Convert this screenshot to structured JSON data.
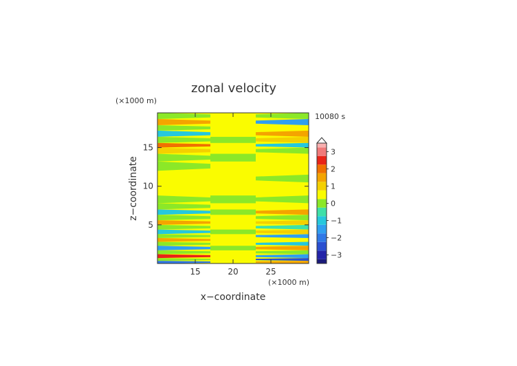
{
  "chart_data": {
    "type": "heatmap",
    "title": "zonal velocity",
    "xlabel": "x−coordinate",
    "ylabel": "z−coordinate",
    "x_unit": "(×1000 m)",
    "y_unit": "(×1000 m)",
    "time_label": "10080 s",
    "xlim": [
      10,
      30
    ],
    "ylim": [
      0,
      19.5
    ],
    "x_ticks": [
      15,
      20,
      25
    ],
    "y_ticks": [
      5,
      10,
      15
    ],
    "colorbar": {
      "ticks": [
        3,
        2,
        1,
        0,
        -1,
        -2,
        -3
      ],
      "min": -3.5,
      "max": 3.5,
      "extend": "max",
      "levels": [
        {
          "from": -3.5,
          "to": -3.25,
          "color": "#1a1a7a"
        },
        {
          "from": -3.25,
          "to": -2.75,
          "color": "#2424a8"
        },
        {
          "from": -2.75,
          "to": -2.25,
          "color": "#2a4fd0"
        },
        {
          "from": -2.25,
          "to": -1.75,
          "color": "#2f78e6"
        },
        {
          "from": -1.75,
          "to": -1.25,
          "color": "#2f9ff0"
        },
        {
          "from": -1.25,
          "to": -0.75,
          "color": "#26c8dc"
        },
        {
          "from": -0.75,
          "to": -0.25,
          "color": "#3fe0a8"
        },
        {
          "from": -0.25,
          "to": 0.25,
          "color": "#8be828"
        },
        {
          "from": 0.25,
          "to": 0.75,
          "color": "#fafc00"
        },
        {
          "from": 0.75,
          "to": 1.25,
          "color": "#f4d000"
        },
        {
          "from": 1.25,
          "to": 1.75,
          "color": "#f4a400"
        },
        {
          "from": 1.75,
          "to": 2.25,
          "color": "#f07000"
        },
        {
          "from": 2.25,
          "to": 2.75,
          "color": "#e82418"
        },
        {
          "from": 2.75,
          "to": 3.25,
          "color": "#f07a7a"
        },
        {
          "from": 3.25,
          "to": 3.5,
          "color": "#f8b0b0"
        }
      ]
    },
    "field": {
      "background_value": 0.5,
      "bands": [
        {
          "z": [
            0.0,
            0.35
          ],
          "left": -2.0,
          "center": 0.5,
          "right": 1.5
        },
        {
          "z": [
            0.35,
            0.7
          ],
          "left": 0.0,
          "center": 0.5,
          "right": -2.5
        },
        {
          "z": [
            0.7,
            1.2
          ],
          "left": 2.5,
          "center": 0.5,
          "right": -1.5
        },
        {
          "z": [
            1.2,
            1.7
          ],
          "left": 0.0,
          "center": 0.5,
          "right": 0.0
        },
        {
          "z": [
            1.7,
            2.3
          ],
          "left": -1.5,
          "center": 0.0,
          "right": 1.5
        },
        {
          "z": [
            2.3,
            2.8
          ],
          "left": 0.0,
          "center": 0.5,
          "right": -1.0
        },
        {
          "z": [
            2.8,
            3.3
          ],
          "left": 1.5,
          "center": 0.5,
          "right": 0.5
        },
        {
          "z": [
            3.3,
            3.8
          ],
          "left": 0.0,
          "center": 0.5,
          "right": -1.5
        },
        {
          "z": [
            3.8,
            4.4
          ],
          "left": -1.0,
          "center": 0.0,
          "right": 1.0
        },
        {
          "z": [
            4.4,
            5.0
          ],
          "left": 0.0,
          "center": 0.5,
          "right": -0.5
        },
        {
          "z": [
            5.0,
            5.6
          ],
          "left": 1.5,
          "center": 0.5,
          "right": 1.0
        },
        {
          "z": [
            5.6,
            6.3
          ],
          "left": 0.0,
          "center": 0.5,
          "right": 0.0
        },
        {
          "z": [
            6.3,
            7.0
          ],
          "left": -1.0,
          "center": 0.0,
          "right": 1.5
        },
        {
          "z": [
            7.0,
            7.8
          ],
          "left": 0.0,
          "center": 0.5,
          "right": 0.5
        },
        {
          "z": [
            7.8,
            8.8
          ],
          "left": 0.0,
          "center": 0.0,
          "right": 0.0
        },
        {
          "z": [
            10.5,
            11.5
          ],
          "left": 0.5,
          "center": 0.5,
          "right": 0.0
        },
        {
          "z": [
            12.0,
            13.2
          ],
          "left": 0.0,
          "center": 0.5,
          "right": 0.5
        },
        {
          "z": [
            13.2,
            14.2
          ],
          "left": 0.0,
          "center": 0.0,
          "right": 0.5
        },
        {
          "z": [
            14.2,
            15.0
          ],
          "left": 1.0,
          "center": 0.5,
          "right": 0.0
        },
        {
          "z": [
            15.0,
            15.6
          ],
          "left": 2.0,
          "center": 0.5,
          "right": -1.0
        },
        {
          "z": [
            15.6,
            16.4
          ],
          "left": 0.0,
          "center": 0.0,
          "right": 1.0
        },
        {
          "z": [
            16.4,
            17.2
          ],
          "left": -1.0,
          "center": 0.5,
          "right": 1.5
        },
        {
          "z": [
            17.2,
            17.9
          ],
          "left": 0.0,
          "center": 0.5,
          "right": 0.5
        },
        {
          "z": [
            17.9,
            18.7
          ],
          "left": 1.5,
          "center": 0.5,
          "right": -1.5
        },
        {
          "z": [
            18.7,
            19.5
          ],
          "left": 0.0,
          "center": 0.5,
          "right": 0.0
        }
      ]
    }
  }
}
